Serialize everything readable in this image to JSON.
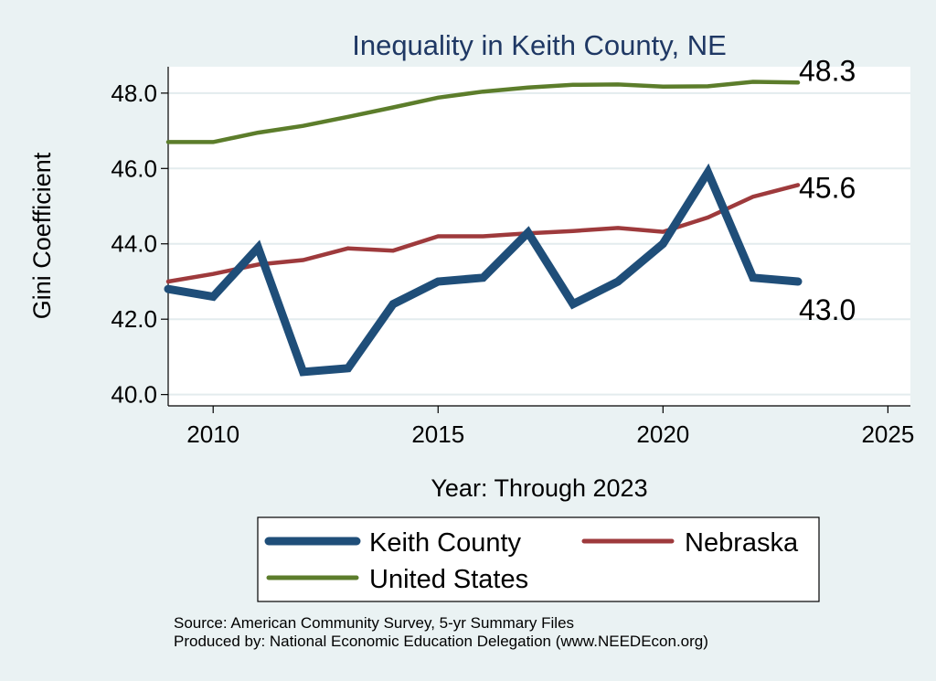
{
  "chart_data": {
    "type": "line",
    "title": "Inequality in Keith County, NE",
    "xlabel": "Year: Through 2023",
    "ylabel": "Gini Coefficient",
    "xlim": [
      2009,
      2025.5
    ],
    "ylim": [
      39.7,
      48.7
    ],
    "xticks": [
      2010,
      2015,
      2020,
      2025
    ],
    "yticks": [
      40.0,
      42.0,
      44.0,
      46.0,
      48.0
    ],
    "grid": true,
    "legend_position": "bottom",
    "series": [
      {
        "name": "Keith County",
        "color": "#1f4e79",
        "x": [
          2009,
          2010,
          2011,
          2012,
          2013,
          2014,
          2015,
          2016,
          2017,
          2018,
          2019,
          2020,
          2021,
          2022,
          2023
        ],
        "values": [
          42.8,
          42.6,
          43.9,
          40.6,
          40.7,
          42.4,
          43.0,
          43.1,
          44.3,
          42.4,
          43.0,
          44.0,
          45.9,
          43.1,
          43.0
        ],
        "end_label": "43.0"
      },
      {
        "name": "Nebraska",
        "color": "#9e3a3c",
        "x": [
          2009,
          2010,
          2011,
          2012,
          2013,
          2014,
          2015,
          2016,
          2017,
          2018,
          2019,
          2020,
          2021,
          2022,
          2023
        ],
        "values": [
          43.0,
          43.2,
          43.45,
          43.57,
          43.88,
          43.82,
          44.2,
          44.2,
          44.28,
          44.34,
          44.42,
          44.32,
          44.7,
          45.25,
          45.56
        ],
        "end_label": "45.6"
      },
      {
        "name": "United States",
        "color": "#5c7d2b",
        "x": [
          2009,
          2010,
          2011,
          2012,
          2013,
          2014,
          2015,
          2016,
          2017,
          2018,
          2019,
          2020,
          2021,
          2022,
          2023
        ],
        "values": [
          46.7,
          46.7,
          46.95,
          47.13,
          47.37,
          47.62,
          47.88,
          48.04,
          48.15,
          48.22,
          48.23,
          48.17,
          48.18,
          48.3,
          48.28
        ],
        "end_label": "48.3"
      }
    ]
  },
  "legend": {
    "items": [
      {
        "label": "Keith County",
        "color": "#1f4e79"
      },
      {
        "label": "Nebraska",
        "color": "#9e3a3c"
      },
      {
        "label": "United States",
        "color": "#5c7d2b"
      }
    ]
  },
  "source": {
    "line1": "Source: American Community Survey, 5-yr Summary Files",
    "line2": "Produced by: National Economic Education Delegation (www.NEEDEcon.org)"
  }
}
